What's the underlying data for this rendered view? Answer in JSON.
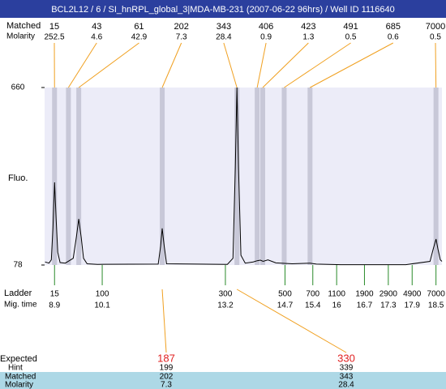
{
  "chart_data": {
    "type": "line",
    "title": "BCL2L12 / 6 / SI_hnRPL_global_3|MDA-MB-231 (2007-06-22 96hrs) / Well ID 1116640",
    "y_label": "Fluo.",
    "ylim": [
      78,
      660
    ],
    "yticks": [
      78,
      660
    ],
    "xlim": [
      8.65,
      18.65
    ],
    "color": "#000000",
    "x": [
      8.66,
      8.76,
      8.82,
      8.86,
      8.9,
      8.94,
      8.98,
      9.04,
      9.17,
      9.37,
      9.45,
      9.51,
      9.57,
      9.63,
      9.72,
      9.98,
      11.51,
      11.57,
      11.61,
      11.66,
      11.72,
      13.25,
      13.39,
      13.45,
      13.49,
      13.53,
      13.59,
      13.7,
      13.9,
      14.0,
      14.08,
      14.15,
      14.27,
      14.47,
      14.88,
      15.33,
      15.49,
      16.1,
      17.74,
      18.35,
      18.43,
      18.5,
      18.55,
      18.61,
      18.65
    ],
    "values": [
      88,
      84,
      95,
      200,
      349,
      230,
      120,
      86,
      84,
      100,
      170,
      229,
      170,
      100,
      82,
      80,
      81,
      140,
      198,
      140,
      82,
      80,
      100,
      400,
      660,
      400,
      110,
      84,
      88,
      92,
      94,
      90,
      95,
      85,
      82,
      84,
      81,
      79,
      79,
      90,
      130,
      163,
      130,
      95,
      90
    ],
    "peaks": {
      "size_label": "Matched",
      "molarity_label": "Molarity",
      "sizes": [
        15,
        43,
        61,
        202,
        343,
        406,
        423,
        491,
        685,
        7000
      ],
      "molarity": [
        252.5,
        4.6,
        42.9,
        7.3,
        28.4,
        0.9,
        1.3,
        0.5,
        0.6,
        0.5
      ],
      "x": [
        8.9,
        9.25,
        9.51,
        11.61,
        13.49,
        14.0,
        14.14,
        14.68,
        15.33,
        18.5
      ]
    },
    "ladder": {
      "label": "Ladder",
      "time_label": "Mig. time",
      "sizes": [
        15,
        100,
        300,
        500,
        700,
        1100,
        1900,
        2900,
        4900,
        7000
      ],
      "times": [
        8.9,
        10.1,
        13.2,
        14.7,
        15.4,
        16,
        16.7,
        17.3,
        17.9,
        18.5
      ]
    },
    "expected": {
      "label": "Expected",
      "hint_label": "Hint",
      "matched_label": "Matched",
      "molarity_label": "Molarity",
      "items": [
        {
          "expected": 187,
          "hint": 199,
          "matched": 202,
          "molarity": 7.3
        },
        {
          "expected": 330,
          "hint": 339,
          "matched": 343,
          "molarity": 28.4
        }
      ]
    }
  }
}
